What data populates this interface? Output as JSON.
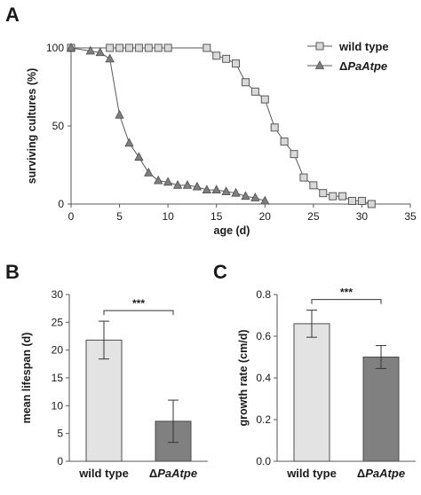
{
  "panels": {
    "a": "A",
    "b": "B",
    "c": "C"
  },
  "chart_data": [
    {
      "type": "line",
      "xlabel": "age (d)",
      "ylabel": "surviving cultures (%)",
      "xlim": [
        0,
        35
      ],
      "ylim": [
        0,
        100
      ],
      "xticks": [
        0,
        5,
        10,
        15,
        20,
        25,
        30,
        35
      ],
      "yticks": [
        0,
        50,
        100
      ],
      "grid": false,
      "legend_position": "top-right",
      "series": [
        {
          "name": "wild type",
          "marker": "square",
          "fill": "#d9d9d9",
          "x": [
            0,
            4,
            5,
            6,
            7,
            8,
            9,
            10,
            14,
            15,
            16,
            17,
            18,
            19,
            20,
            21,
            22,
            23,
            24,
            25,
            26,
            27,
            28,
            29,
            30,
            31
          ],
          "y": [
            100,
            100,
            100,
            100,
            100,
            100,
            100,
            100,
            100,
            95,
            93,
            90,
            78,
            72,
            67,
            49,
            40,
            32,
            17,
            12,
            7,
            5,
            5,
            2,
            2,
            0
          ]
        },
        {
          "name": "ΔPaAtpe",
          "marker": "triangle",
          "fill": "#7f7f7f",
          "x": [
            0,
            2,
            3,
            4,
            5,
            6,
            7,
            8,
            9,
            10,
            11,
            12,
            13,
            14,
            15,
            16,
            17,
            18,
            19,
            20
          ],
          "y": [
            100,
            98,
            97,
            93,
            57,
            39,
            30,
            20,
            15,
            14,
            12,
            12,
            11,
            9,
            9,
            8,
            7,
            5,
            4,
            2
          ]
        }
      ]
    },
    {
      "type": "bar",
      "ylabel": "mean lifespan (d)",
      "categories": [
        "wild type",
        "ΔPaAtpe"
      ],
      "values": [
        21.8,
        7.2
      ],
      "errors": [
        3.4,
        3.8
      ],
      "colors": [
        "#e3e3e3",
        "#808080"
      ],
      "ylim": [
        0,
        30
      ],
      "yticks": [
        0,
        5,
        10,
        15,
        20,
        25,
        30
      ],
      "significance": "***"
    },
    {
      "type": "bar",
      "ylabel": "growth rate (cm/d)",
      "categories": [
        "wild type",
        "ΔPaAtpe"
      ],
      "values": [
        0.66,
        0.5
      ],
      "errors": [
        0.065,
        0.055
      ],
      "colors": [
        "#e3e3e3",
        "#808080"
      ],
      "ylim": [
        0,
        0.8
      ],
      "yticks": [
        0,
        0.2,
        0.4,
        0.6,
        0.8
      ],
      "significance": "***"
    }
  ]
}
